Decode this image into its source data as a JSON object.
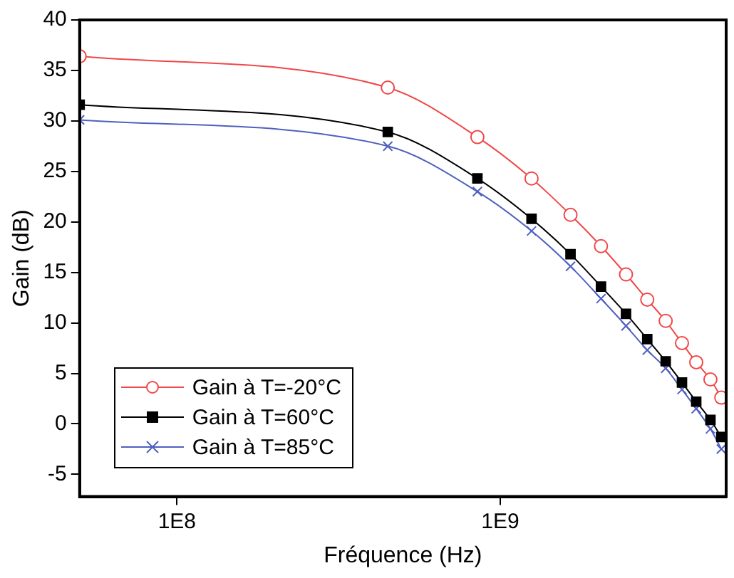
{
  "chart_data": {
    "type": "line",
    "xlabel": "Fréquence (Hz)",
    "ylabel": "Gain (dB)",
    "log": "x",
    "xlim": [
      50000000.0,
      5000000000.0
    ],
    "xticks": [
      {
        "value": 100000000.0,
        "label": "1E8"
      },
      {
        "value": 1000000000.0,
        "label": "1E9"
      }
    ],
    "ylim": [
      -7.2,
      40
    ],
    "yticks": [
      -5,
      0,
      5,
      10,
      15,
      20,
      25,
      30,
      35,
      40
    ],
    "grid": false,
    "legend": "bottom left",
    "line_style": "solid",
    "series": [
      {
        "name": "Gain à T=-20°C",
        "color": "#f04848",
        "marker": "circle",
        "x": [
          50000000.0,
          449000000.0,
          850000000.0,
          1250000000.0,
          1650000000.0,
          2050000000.0,
          2450000000.0,
          2850000000.0,
          3250000000.0,
          3650000000.0,
          4040000000.0,
          4470000000.0,
          4830000000.0
        ],
        "values": [
          36.4,
          33.3,
          28.4,
          24.3,
          20.7,
          17.6,
          14.8,
          12.3,
          10.2,
          8.0,
          6.1,
          4.4,
          2.6
        ]
      },
      {
        "name": "Gain à T=60°C",
        "color": "#000000",
        "marker": "square",
        "x": [
          50000000.0,
          449000000.0,
          850000000.0,
          1250000000.0,
          1650000000.0,
          2050000000.0,
          2450000000.0,
          2850000000.0,
          3250000000.0,
          3650000000.0,
          4040000000.0,
          4470000000.0,
          4830000000.0
        ],
        "values": [
          31.6,
          28.9,
          24.3,
          20.3,
          16.8,
          13.6,
          10.9,
          8.4,
          6.2,
          4.1,
          2.2,
          0.4,
          -1.3
        ]
      },
      {
        "name": "Gain à T=85°C",
        "color": "#5060c0",
        "marker": "cross",
        "x": [
          50000000.0,
          449000000.0,
          850000000.0,
          1250000000.0,
          1650000000.0,
          2050000000.0,
          2450000000.0,
          2850000000.0,
          3250000000.0,
          3650000000.0,
          4040000000.0,
          4470000000.0,
          4830000000.0
        ],
        "values": [
          30.1,
          27.5,
          23.0,
          19.1,
          15.6,
          12.4,
          9.7,
          7.3,
          5.5,
          3.4,
          1.5,
          -0.5,
          -2.5
        ]
      }
    ]
  }
}
